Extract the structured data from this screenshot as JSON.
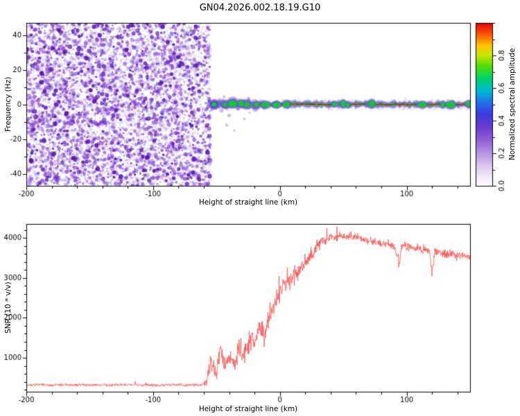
{
  "title": "GN04.2026.002.18.19.G10",
  "chart_data": [
    {
      "type": "heatmap",
      "name": "radio-hologram-spectrogram",
      "xlabel": "Height of straight line (km)",
      "ylabel": "Frequency (Hz)",
      "xlim": [
        -200,
        150
      ],
      "ylim": [
        -47,
        47
      ],
      "xticks": [
        -200,
        -100,
        0,
        100
      ],
      "xtick_minor_step": 20,
      "yticks": [
        -40,
        -20,
        0,
        20,
        40
      ],
      "ytick_minor_step": 10,
      "noise_region": {
        "x_start": -200,
        "x_end": -55,
        "amplitude_range": [
          0,
          0.25
        ],
        "description": "broadband purple speckle noise filling all frequencies"
      },
      "signal_track": {
        "x_start": -55,
        "x_end": 150,
        "center_frequency_hz": 0,
        "core_amplitude": 0.95,
        "halo_amplitude": 0.6,
        "fringe_amplitude": 0.2,
        "description": "narrow high-amplitude carrier near 0 Hz; wider and wavier between -55 and -10 km, thin and flat beyond 0 km"
      },
      "colorbar": {
        "label": "Normalized spectral amplitude",
        "ticks": [
          "0.0",
          "0.2",
          "0.4",
          "0.6",
          "0.8"
        ],
        "tick_values": [
          0,
          0.2,
          0.4,
          0.6,
          0.8
        ],
        "minor_step": 0.1,
        "range": [
          0,
          1
        ],
        "colormap": [
          {
            "v": 0.0,
            "c": "#ffffff"
          },
          {
            "v": 0.05,
            "c": "#f3ecfb"
          },
          {
            "v": 0.12,
            "c": "#dcc8f2"
          },
          {
            "v": 0.2,
            "c": "#b993e6"
          },
          {
            "v": 0.28,
            "c": "#9160d8"
          },
          {
            "v": 0.36,
            "c": "#6b3ad0"
          },
          {
            "v": 0.44,
            "c": "#3c3ae0"
          },
          {
            "v": 0.52,
            "c": "#1e78e8"
          },
          {
            "v": 0.58,
            "c": "#00b8d8"
          },
          {
            "v": 0.66,
            "c": "#00d268"
          },
          {
            "v": 0.74,
            "c": "#55e000"
          },
          {
            "v": 0.8,
            "c": "#c8e600"
          },
          {
            "v": 0.86,
            "c": "#ffc800"
          },
          {
            "v": 0.92,
            "c": "#ff6400"
          },
          {
            "v": 1.0,
            "c": "#e60014"
          }
        ]
      }
    },
    {
      "type": "line",
      "name": "snr-profile",
      "xlabel": "Height of straight line (km)",
      "ylabel": "SNR (10 * v/v)",
      "color": "#f83b3b",
      "xlim": [
        -200,
        150
      ],
      "ylim": [
        150,
        4350
      ],
      "xticks": [
        -200,
        -100,
        0,
        100
      ],
      "xtick_minor_step": 20,
      "yticks": [
        1000,
        2000,
        3000,
        4000
      ],
      "ytick_minor_step": 200,
      "envelope": {
        "x": [
          -200,
          -62,
          -58,
          -54,
          -50,
          -47,
          -44,
          -40,
          -36,
          -32,
          -28,
          -24,
          -20,
          -16,
          -12,
          -8,
          -4,
          0,
          5,
          10,
          15,
          20,
          25,
          30,
          40,
          50,
          60,
          70,
          80,
          90,
          94,
          96,
          100,
          110,
          118,
          120,
          122,
          130,
          140,
          150
        ],
        "mean": [
          320,
          320,
          360,
          950,
          620,
          1250,
          750,
          1050,
          850,
          1250,
          1050,
          1450,
          1350,
          1750,
          1550,
          2050,
          2350,
          2650,
          2850,
          3050,
          3150,
          3350,
          3550,
          3850,
          4020,
          4060,
          4000,
          3920,
          3870,
          3820,
          3350,
          3820,
          3770,
          3720,
          3670,
          3150,
          3670,
          3620,
          3570,
          3520
        ],
        "jitter": [
          55,
          55,
          130,
          480,
          360,
          430,
          350,
          420,
          380,
          440,
          400,
          450,
          430,
          490,
          450,
          500,
          540,
          490,
          400,
          380,
          350,
          320,
          300,
          250,
          200,
          180,
          170,
          160,
          160,
          160,
          380,
          160,
          160,
          160,
          160,
          340,
          160,
          160,
          170,
          170
        ]
      }
    }
  ]
}
